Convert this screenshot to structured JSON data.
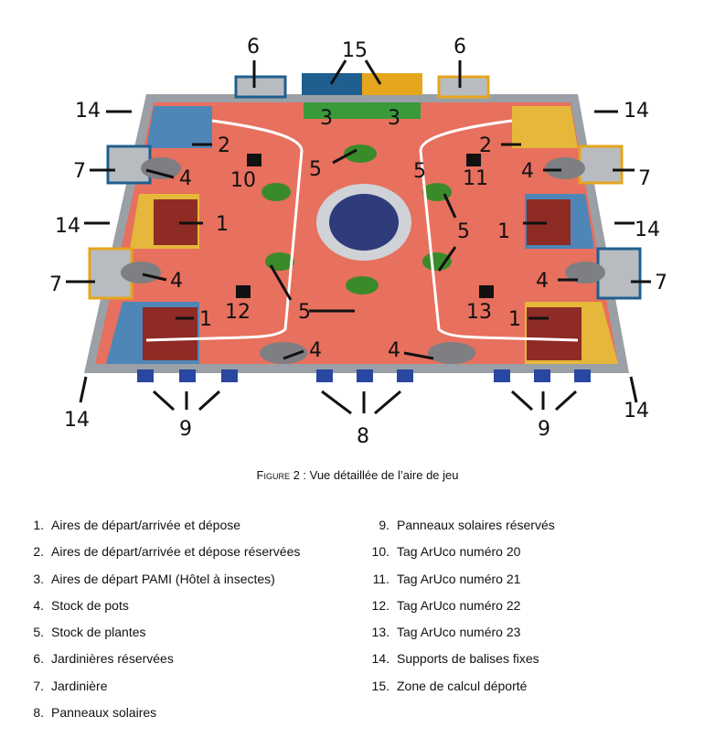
{
  "figure": {
    "callouts": {
      "c15": "15",
      "c6a": "6",
      "c6b": "6",
      "c14a": "14",
      "c14b": "14",
      "c14c": "14",
      "c14d": "14",
      "c14e": "14",
      "c14f": "14",
      "c7a": "7",
      "c7b": "7",
      "c7c": "7",
      "c7d": "7",
      "c3a": "3",
      "c3b": "3",
      "c2a": "2",
      "c2b": "2",
      "c4a": "4",
      "c4b": "4",
      "c4c": "4",
      "c4d": "4",
      "c4e": "4",
      "c4f": "4",
      "c5a": "5",
      "c5b": "5",
      "c5c": "5",
      "c5d": "5",
      "c10": "10",
      "c11": "11",
      "c12": "12",
      "c13": "13",
      "c1a": "1",
      "c1b": "1",
      "c1c": "1",
      "c1d": "1",
      "c9a": "9",
      "c9b": "9",
      "c8": "8"
    },
    "colors": {
      "floor": "#e8705e",
      "blue": "#1f5f8f",
      "yellow": "#e5a51c",
      "dark_red": "#8e2b24",
      "border_grey": "#9aa0a6",
      "plant_green": "#3a8a2a"
    }
  },
  "caption": {
    "figure_word": "Figure",
    "rest": " 2 : Vue détaillée de l’aire de jeu"
  },
  "legend": {
    "left": [
      {
        "num": "1.",
        "text": "Aires de départ/arrivée et dépose"
      },
      {
        "num": "2.",
        "text": "Aires de départ/arrivée et dépose réservées"
      },
      {
        "num": "3.",
        "text": "Aires de départ PAMI (Hôtel à insectes)"
      },
      {
        "num": "4.",
        "text": "Stock de pots"
      },
      {
        "num": "5.",
        "text": "Stock de plantes"
      },
      {
        "num": "6.",
        "text": "Jardinières réservées"
      },
      {
        "num": "7.",
        "text": "Jardinière"
      },
      {
        "num": "8.",
        "text": "Panneaux solaires"
      }
    ],
    "right": [
      {
        "num": "9.",
        "text": "Panneaux solaires réservés"
      },
      {
        "num": "10.",
        "text": "Tag ArUco numéro 20"
      },
      {
        "num": "11.",
        "text": "Tag ArUco numéro 21"
      },
      {
        "num": "12.",
        "text": "Tag ArUco numéro 22"
      },
      {
        "num": "13.",
        "text": "Tag ArUco numéro 23"
      },
      {
        "num": "14.",
        "text": "Supports de balises fixes"
      },
      {
        "num": "15.",
        "text": "Zone de calcul déporté"
      }
    ]
  }
}
